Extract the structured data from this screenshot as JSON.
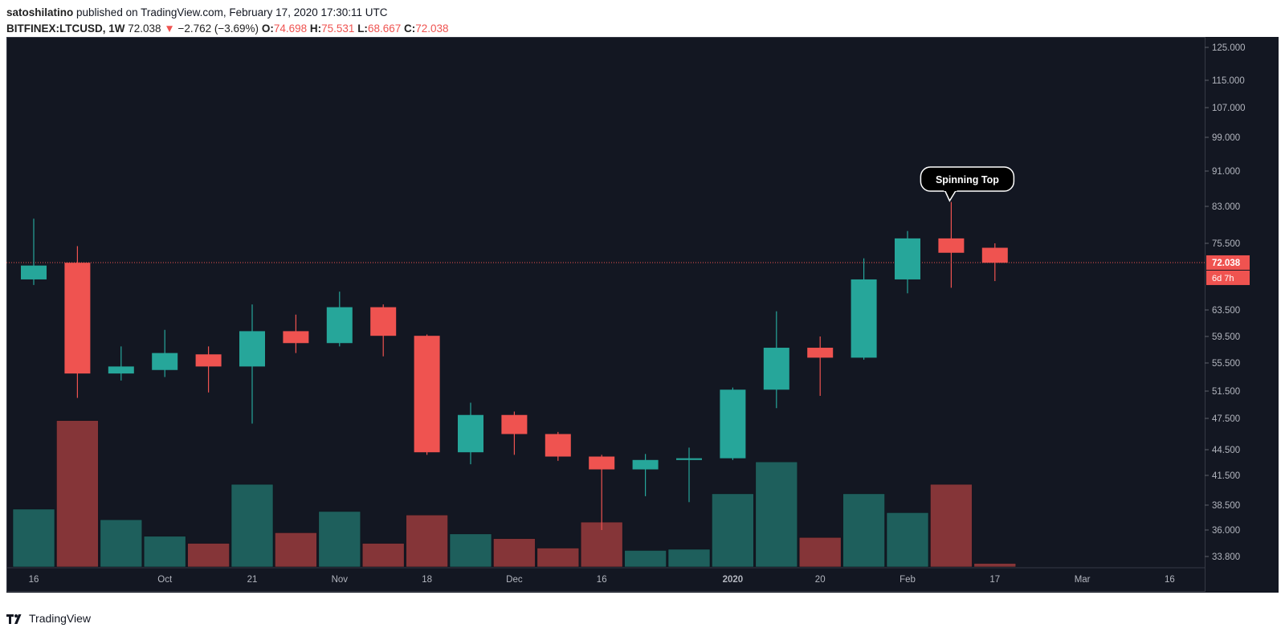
{
  "header": {
    "author": "satoshilatino",
    "published_text": "published on TradingView.com, February 17, 2020 17:30:11 UTC",
    "symbol": "BITFINEX:LTCUSD, 1W",
    "last": "72.038",
    "arrow": "▼",
    "change": "−2.762 (−3.69%)",
    "o_label": "O:",
    "o_value": "74.698",
    "h_label": "H:",
    "h_value": "75.531",
    "l_label": "L:",
    "l_value": "68.667",
    "c_label": "C:",
    "c_value": "72.038"
  },
  "footer": {
    "brand": "TradingView"
  },
  "colors": {
    "background": "#131722",
    "up": "#26a69a",
    "down": "#ef5350",
    "volume_up": "#1e5f5c",
    "volume_down": "#853538",
    "price_line": "#ef5350"
  },
  "chart_data": {
    "type": "candlestick",
    "y_ticks": [
      "125.000",
      "115.000",
      "107.000",
      "99.000",
      "91.000",
      "83.000",
      "75.500",
      "63.500",
      "59.500",
      "55.500",
      "51.500",
      "47.500",
      "44.500",
      "41.500",
      "38.500",
      "36.000",
      "33.800"
    ],
    "x_ticks": [
      "16",
      "Oct",
      "21",
      "Nov",
      "18",
      "Dec",
      "16",
      "2020",
      "20",
      "Feb",
      "17",
      "Mar",
      "16"
    ],
    "x_tick_index": [
      0,
      3,
      5,
      7,
      9,
      11,
      13,
      16,
      18,
      20,
      22,
      24,
      26
    ],
    "candles": [
      {
        "o": 69.0,
        "h": 80.5,
        "l": 68.0,
        "c": 71.5
      },
      {
        "o": 72.0,
        "h": 75.0,
        "l": 50.5,
        "c": 54.0
      },
      {
        "o": 54.0,
        "h": 58.0,
        "l": 53.0,
        "c": 55.0
      },
      {
        "o": 54.5,
        "h": 60.5,
        "l": 53.5,
        "c": 57.0
      },
      {
        "o": 56.8,
        "h": 58.0,
        "l": 51.3,
        "c": 55.0
      },
      {
        "o": 55.0,
        "h": 64.5,
        "l": 47.0,
        "c": 60.3
      },
      {
        "o": 60.3,
        "h": 62.8,
        "l": 57.0,
        "c": 58.5
      },
      {
        "o": 58.5,
        "h": 66.8,
        "l": 58.0,
        "c": 64.0
      },
      {
        "o": 64.0,
        "h": 64.5,
        "l": 56.5,
        "c": 59.6
      },
      {
        "o": 59.6,
        "h": 59.8,
        "l": 43.9,
        "c": 44.2
      },
      {
        "o": 44.2,
        "h": 49.8,
        "l": 42.8,
        "c": 48.0
      },
      {
        "o": 48.0,
        "h": 48.5,
        "l": 43.9,
        "c": 46.0
      },
      {
        "o": 46.0,
        "h": 46.2,
        "l": 43.2,
        "c": 43.7
      },
      {
        "o": 43.7,
        "h": 43.9,
        "l": 36.0,
        "c": 42.2
      },
      {
        "o": 42.2,
        "h": 44.0,
        "l": 39.4,
        "c": 43.3
      },
      {
        "o": 43.3,
        "h": 44.7,
        "l": 38.8,
        "c": 43.5
      },
      {
        "o": 43.5,
        "h": 52.0,
        "l": 43.3,
        "c": 51.7
      },
      {
        "o": 51.7,
        "h": 63.3,
        "l": 49.0,
        "c": 57.8
      },
      {
        "o": 57.8,
        "h": 59.5,
        "l": 50.8,
        "c": 56.3
      },
      {
        "o": 56.3,
        "h": 72.8,
        "l": 56.0,
        "c": 69.0
      },
      {
        "o": 69.0,
        "h": 78.0,
        "l": 66.5,
        "c": 76.5
      },
      {
        "o": 76.5,
        "h": 84.0,
        "l": 67.5,
        "c": 73.8
      },
      {
        "o": 74.7,
        "h": 75.5,
        "l": 68.7,
        "c": 72.0
      }
    ],
    "volume": [
      38.5,
      46.0,
      37.6,
      36.2,
      35.6,
      40.6,
      36.5,
      38.3,
      35.6,
      38.0,
      36.4,
      36.0,
      35.2,
      37.4,
      35.0,
      35.1,
      39.8,
      42.5,
      36.1,
      39.8,
      38.2,
      40.6,
      33.9
    ],
    "current_price": "72.038",
    "countdown": "6d 7h",
    "annotation": {
      "text": "Spinning Top",
      "candle": 21
    }
  }
}
